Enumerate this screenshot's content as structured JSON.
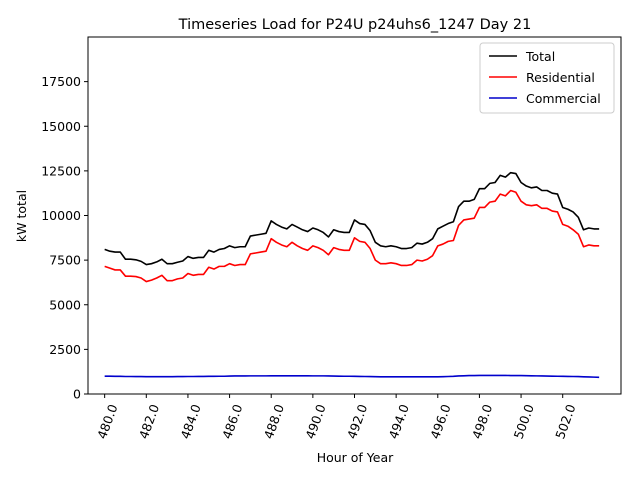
{
  "chart_data": {
    "type": "line",
    "title": "Timeseries Load for P24U p24uhs6_1247  Day 21",
    "xlabel": "Hour of Year",
    "ylabel": "kW total",
    "xlim": [
      479.2,
      504.8
    ],
    "ylim": [
      0,
      20000
    ],
    "x_start": 480.0,
    "x_step": 0.25,
    "x_ticks": [
      480.0,
      482.0,
      484.0,
      486.0,
      488.0,
      490.0,
      492.0,
      494.0,
      496.0,
      498.0,
      500.0,
      502.0
    ],
    "x_tick_labels": [
      "480.0",
      "482.0",
      "484.0",
      "486.0",
      "488.0",
      "490.0",
      "492.0",
      "494.0",
      "496.0",
      "498.0",
      "500.0",
      "502.0"
    ],
    "y_ticks": [
      0,
      2500,
      5000,
      7500,
      10000,
      12500,
      15000,
      17500
    ],
    "y_tick_labels": [
      "0",
      "2500",
      "5000",
      "7500",
      "10000",
      "12500",
      "15000",
      "17500"
    ],
    "legend_position": "top-right",
    "series": [
      {
        "name": "Total",
        "color": "#000000",
        "values": [
          8100,
          8000,
          7950,
          7950,
          7550,
          7550,
          7520,
          7430,
          7250,
          7300,
          7400,
          7550,
          7300,
          7300,
          7380,
          7450,
          7700,
          7600,
          7650,
          7650,
          8050,
          7950,
          8100,
          8150,
          8300,
          8200,
          8250,
          8250,
          8850,
          8900,
          8950,
          9000,
          9700,
          9500,
          9350,
          9250,
          9500,
          9350,
          9200,
          9100,
          9300,
          9200,
          9050,
          8800,
          9200,
          9100,
          9050,
          9050,
          9750,
          9550,
          9500,
          9150,
          8500,
          8300,
          8250,
          8300,
          8250,
          8150,
          8150,
          8200,
          8450,
          8400,
          8500,
          8700,
          9250,
          9400,
          9550,
          9650,
          10500,
          10800,
          10800,
          10900,
          11500,
          11500,
          11800,
          11850,
          12250,
          12150,
          12400,
          12350,
          11850,
          11650,
          11550,
          11600,
          11400,
          11400,
          11250,
          11200,
          10450,
          10350,
          10200,
          9900,
          9200,
          9300,
          9250,
          9250
        ],
        "label": "Total"
      },
      {
        "name": "Residential",
        "color": "#ff0000",
        "values": [
          7150,
          7050,
          6950,
          6950,
          6600,
          6600,
          6580,
          6500,
          6300,
          6380,
          6500,
          6650,
          6350,
          6350,
          6450,
          6500,
          6750,
          6650,
          6700,
          6700,
          7100,
          7000,
          7150,
          7150,
          7300,
          7200,
          7250,
          7250,
          7850,
          7900,
          7950,
          8000,
          8700,
          8500,
          8350,
          8250,
          8500,
          8300,
          8150,
          8050,
          8300,
          8200,
          8050,
          7800,
          8200,
          8100,
          8050,
          8050,
          8750,
          8550,
          8500,
          8150,
          7500,
          7300,
          7300,
          7350,
          7300,
          7200,
          7200,
          7250,
          7500,
          7450,
          7550,
          7750,
          8300,
          8400,
          8550,
          8600,
          9450,
          9750,
          9800,
          9850,
          10450,
          10450,
          10750,
          10800,
          11200,
          11100,
          11400,
          11300,
          10800,
          10600,
          10550,
          10600,
          10400,
          10400,
          10250,
          10200,
          9500,
          9400,
          9200,
          8950,
          8250,
          8350,
          8300,
          8300
        ],
        "label": "Residential"
      },
      {
        "name": "Commercial",
        "color": "#0000cc",
        "values": [
          1000,
          1000,
          990,
          990,
          980,
          980,
          975,
          975,
          970,
          970,
          970,
          970,
          970,
          970,
          975,
          975,
          980,
          980,
          985,
          985,
          990,
          990,
          995,
          995,
          1005,
          1010,
          1010,
          1010,
          1015,
          1015,
          1015,
          1015,
          1020,
          1020,
          1020,
          1020,
          1020,
          1020,
          1020,
          1020,
          1015,
          1015,
          1015,
          1010,
          1005,
          1000,
          995,
          995,
          990,
          985,
          980,
          975,
          970,
          965,
          960,
          960,
          960,
          960,
          960,
          960,
          960,
          960,
          960,
          960,
          965,
          970,
          980,
          990,
          1010,
          1020,
          1030,
          1035,
          1040,
          1040,
          1040,
          1040,
          1040,
          1040,
          1035,
          1035,
          1030,
          1025,
          1020,
          1015,
          1010,
          1005,
          1000,
          995,
          990,
          985,
          980,
          975,
          965,
          955,
          945,
          935
        ],
        "label": "Commercial"
      }
    ]
  }
}
